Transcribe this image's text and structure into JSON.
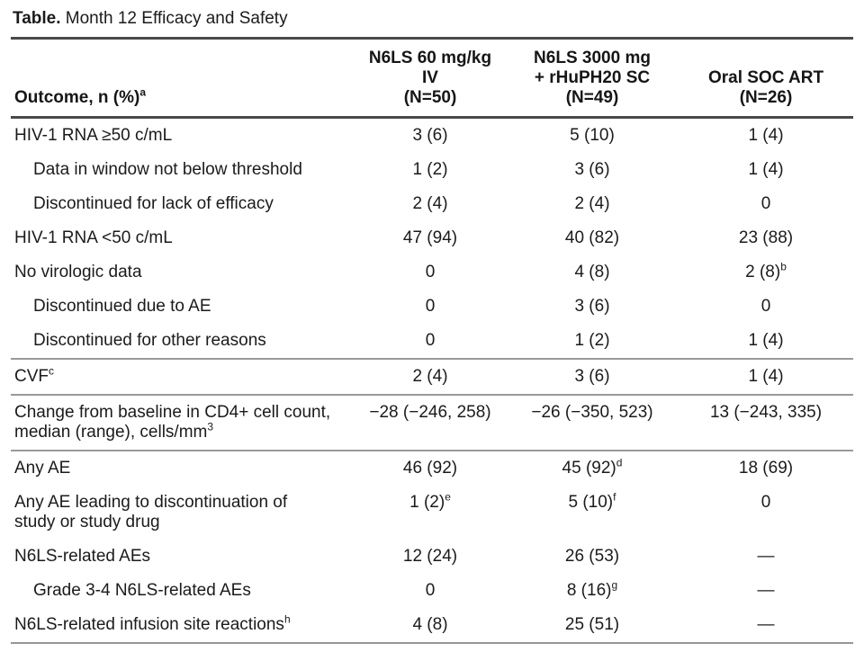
{
  "title": {
    "prefix": "Table.",
    "rest": " Month 12 Efficacy and Safety"
  },
  "table": {
    "columns": [
      {
        "lines": [
          "Outcome, n (%)"
        ],
        "sup": "a"
      },
      {
        "lines": [
          "N6LS 60 mg/kg",
          "IV",
          "(N=50)"
        ],
        "sup": ""
      },
      {
        "lines": [
          "N6LS 3000 mg",
          "+ rHuPH20 SC",
          "(N=49)"
        ],
        "sup": ""
      },
      {
        "lines": [
          "Oral SOC ART",
          "(N=26)"
        ],
        "sup": ""
      }
    ],
    "rows": [
      {
        "label": "HIV-1 RNA ≥50 c/mL",
        "label_sup": "",
        "indent": false,
        "values": [
          "3 (6)",
          "5 (10)",
          "1 (4)"
        ],
        "value_sups": [
          "",
          "",
          ""
        ],
        "rule_after": ""
      },
      {
        "label": "Data in window not below threshold",
        "label_sup": "",
        "indent": true,
        "values": [
          "1 (2)",
          "3 (6)",
          "1 (4)"
        ],
        "value_sups": [
          "",
          "",
          ""
        ],
        "rule_after": ""
      },
      {
        "label": "Discontinued for lack of efficacy",
        "label_sup": "",
        "indent": true,
        "values": [
          "2 (4)",
          "2 (4)",
          "0"
        ],
        "value_sups": [
          "",
          "",
          ""
        ],
        "rule_after": ""
      },
      {
        "label": "HIV-1 RNA <50 c/mL",
        "label_sup": "",
        "indent": false,
        "values": [
          "47 (94)",
          "40 (82)",
          "23 (88)"
        ],
        "value_sups": [
          "",
          "",
          ""
        ],
        "rule_after": ""
      },
      {
        "label": "No virologic data",
        "label_sup": "",
        "indent": false,
        "values": [
          "0",
          "4 (8)",
          "2 (8)"
        ],
        "value_sups": [
          "",
          "",
          "b"
        ],
        "rule_after": ""
      },
      {
        "label": "Discontinued due to AE",
        "label_sup": "",
        "indent": true,
        "values": [
          "0",
          "3 (6)",
          "0"
        ],
        "value_sups": [
          "",
          "",
          ""
        ],
        "rule_after": ""
      },
      {
        "label": "Discontinued for other reasons",
        "label_sup": "",
        "indent": true,
        "values": [
          "0",
          "1 (2)",
          "1 (4)"
        ],
        "value_sups": [
          "",
          "",
          ""
        ],
        "rule_after": "section"
      },
      {
        "label": "CVF",
        "label_sup": "c",
        "indent": false,
        "values": [
          "2 (4)",
          "3 (6)",
          "1 (4)"
        ],
        "value_sups": [
          "",
          "",
          ""
        ],
        "rule_after": "section"
      },
      {
        "label": "Change from baseline in CD4+ cell count, median (range), cells/mm",
        "label_sup": "3",
        "indent": false,
        "values": [
          "−28 (−246, 258)",
          "−26 (−350, 523)",
          "13 (−243, 335)"
        ],
        "value_sups": [
          "",
          "",
          ""
        ],
        "rule_after": "section"
      },
      {
        "label": "Any AE",
        "label_sup": "",
        "indent": false,
        "values": [
          "46 (92)",
          "45 (92)",
          "18 (69)"
        ],
        "value_sups": [
          "",
          "d",
          ""
        ],
        "rule_after": ""
      },
      {
        "label": "Any AE leading to discontinuation of study or study drug",
        "label_sup": "",
        "indent": false,
        "values": [
          "1 (2)",
          "5 (10)",
          "0"
        ],
        "value_sups": [
          "e",
          "f",
          ""
        ],
        "rule_after": ""
      },
      {
        "label": "N6LS-related AEs",
        "label_sup": "",
        "indent": false,
        "values": [
          "12 (24)",
          "26 (53)",
          "—"
        ],
        "value_sups": [
          "",
          "",
          ""
        ],
        "rule_after": ""
      },
      {
        "label": "Grade 3-4 N6LS-related AEs",
        "label_sup": "",
        "indent": true,
        "values": [
          "0",
          "8 (16)",
          "—"
        ],
        "value_sups": [
          "",
          "g",
          ""
        ],
        "rule_after": ""
      },
      {
        "label": "N6LS-related infusion site reactions",
        "label_sup": "h",
        "indent": false,
        "values": [
          "4 (8)",
          "25 (51)",
          "—"
        ],
        "value_sups": [
          "",
          "",
          ""
        ],
        "rule_after": ""
      }
    ]
  }
}
